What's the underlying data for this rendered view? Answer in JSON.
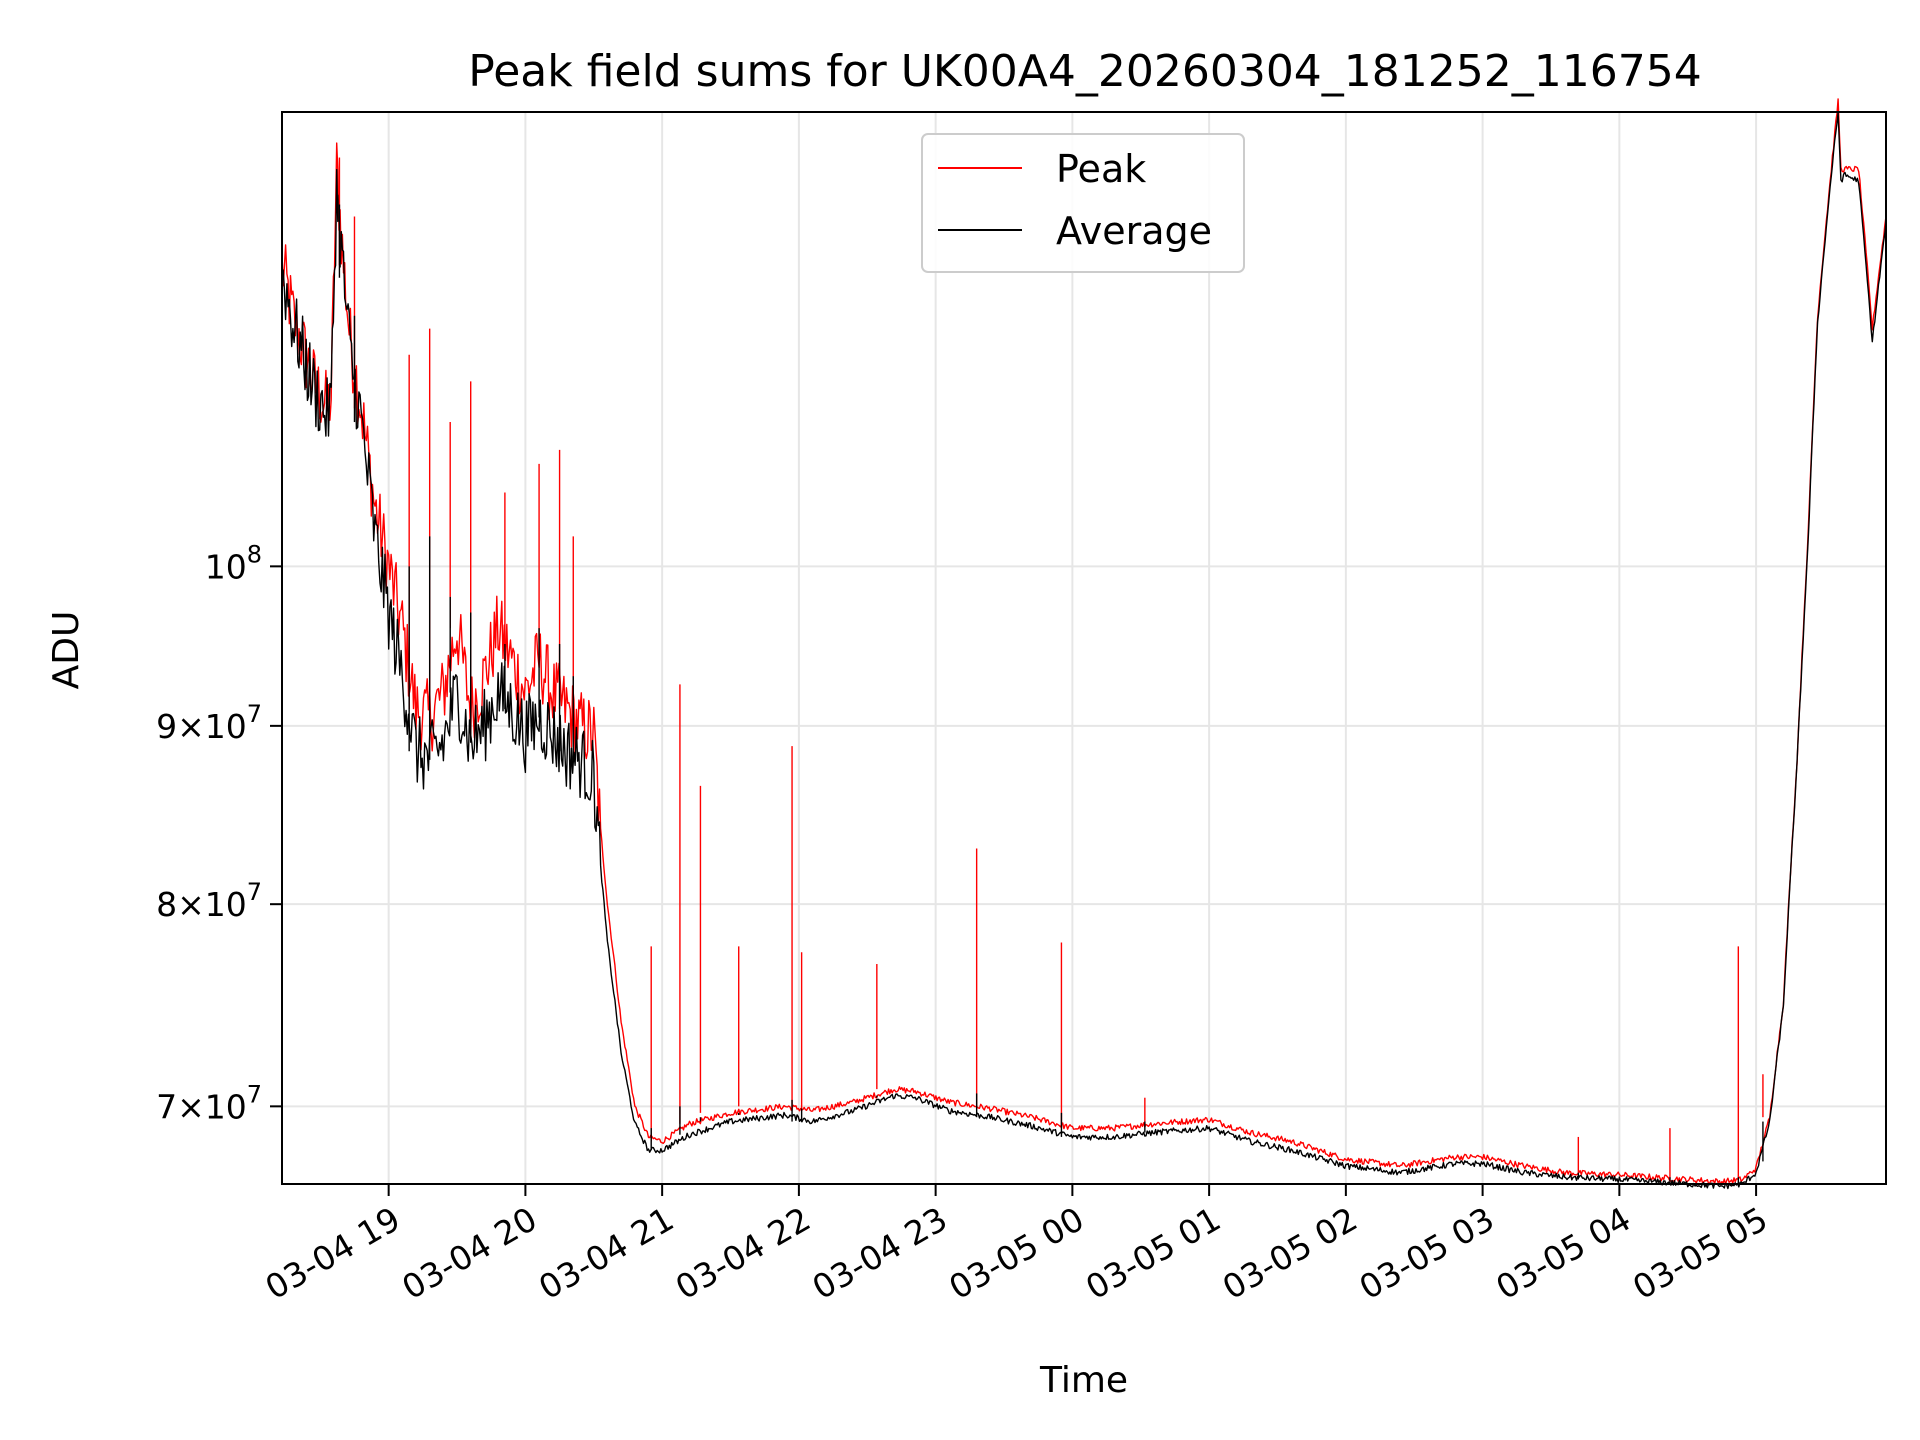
{
  "chart_data": {
    "type": "line",
    "title": "Peak field sums for UK00A4_20260304_181252_116754",
    "xlabel": "Time",
    "ylabel": "ADU",
    "x_unit": "hours from 2026-03-04 00:00 (ticks labelled MM-DD HH)",
    "xlim": [
      18.22,
      29.95
    ],
    "ylim": [
      66500000,
      135000000
    ],
    "y_scale": "log",
    "grid": true,
    "legend_position": "upper-center",
    "x_ticks": [
      {
        "value": 19,
        "label": "03-04 19"
      },
      {
        "value": 20,
        "label": "03-04 20"
      },
      {
        "value": 21,
        "label": "03-04 21"
      },
      {
        "value": 22,
        "label": "03-04 22"
      },
      {
        "value": 23,
        "label": "03-04 23"
      },
      {
        "value": 24,
        "label": "03-05 00"
      },
      {
        "value": 25,
        "label": "03-05 01"
      },
      {
        "value": 26,
        "label": "03-05 02"
      },
      {
        "value": 27,
        "label": "03-05 03"
      },
      {
        "value": 28,
        "label": "03-05 04"
      },
      {
        "value": 29,
        "label": "03-05 05"
      }
    ],
    "y_ticks": [
      {
        "value": 70000000,
        "mantissa": "7",
        "base": "10",
        "exponent": "7"
      },
      {
        "value": 80000000,
        "mantissa": "8",
        "base": "10",
        "exponent": "7"
      },
      {
        "value": 90000000,
        "mantissa": "9",
        "base": "10",
        "exponent": "7"
      },
      {
        "value": 100000000,
        "mantissa": "",
        "base": "10",
        "exponent": "8"
      }
    ],
    "series": [
      {
        "name": "Peak",
        "color": "#ff0000",
        "x": [
          18.22,
          18.3,
          18.45,
          18.55,
          18.58,
          18.62,
          18.67,
          18.72,
          18.8,
          18.9,
          19.0,
          19.1,
          19.2,
          19.3,
          19.4,
          19.5,
          19.6,
          19.7,
          19.8,
          19.9,
          20.0,
          20.1,
          20.2,
          20.3,
          20.4,
          20.5,
          20.55,
          20.6,
          20.7,
          20.8,
          20.9,
          21.0,
          21.2,
          21.5,
          21.9,
          22.1,
          22.4,
          22.7,
          22.85,
          23.1,
          23.4,
          23.7,
          24.0,
          24.3,
          24.6,
          25.0,
          25.3,
          25.6,
          26.0,
          26.4,
          26.8,
          27.0,
          27.3,
          27.6,
          28.0,
          28.5,
          28.75,
          28.9,
          29.0,
          29.1,
          29.2,
          29.3,
          29.38,
          29.45,
          29.55,
          29.6,
          29.62,
          29.65,
          29.75,
          29.85,
          29.95
        ],
        "values": [
          122000000,
          118000000,
          113000000,
          111000000,
          112000000,
          130000000,
          122000000,
          116000000,
          111000000,
          104000000,
          100000000,
          96000000,
          91000000,
          90500000,
          92000000,
          96000000,
          91000000,
          93000000,
          96000000,
          94000000,
          92000000,
          94000000,
          92000000,
          91000000,
          90000000,
          89500000,
          84000000,
          80000000,
          74000000,
          70000000,
          68600000,
          68400000,
          69200000,
          69700000,
          70000000,
          69800000,
          70200000,
          70800000,
          70700000,
          70200000,
          69900000,
          69500000,
          69000000,
          69000000,
          69200000,
          69400000,
          68800000,
          68400000,
          67600000,
          67300000,
          67700000,
          67700000,
          67300000,
          67000000,
          66900000,
          66700000,
          66600000,
          66700000,
          67200000,
          69500000,
          75000000,
          88000000,
          102000000,
          118000000,
          130000000,
          136000000,
          130000000,
          130000000,
          130000000,
          117000000,
          126000000
        ]
      },
      {
        "name": "Average",
        "color": "#000000",
        "x": [
          18.22,
          18.3,
          18.45,
          18.55,
          18.58,
          18.62,
          18.67,
          18.72,
          18.8,
          18.9,
          19.0,
          19.1,
          19.2,
          19.3,
          19.4,
          19.5,
          19.6,
          19.7,
          19.8,
          19.9,
          20.0,
          20.1,
          20.2,
          20.3,
          20.4,
          20.5,
          20.55,
          20.6,
          20.7,
          20.8,
          20.9,
          21.0,
          21.2,
          21.5,
          21.9,
          22.1,
          22.4,
          22.7,
          22.85,
          23.1,
          23.4,
          23.7,
          24.0,
          24.3,
          24.6,
          25.0,
          25.3,
          25.6,
          26.0,
          26.4,
          26.8,
          27.0,
          27.3,
          27.6,
          28.0,
          28.5,
          28.75,
          28.9,
          29.0,
          29.1,
          29.2,
          29.3,
          29.38,
          29.45,
          29.55,
          29.6,
          29.62,
          29.65,
          29.75,
          29.85,
          29.95
        ],
        "values": [
          121500000,
          117500000,
          112500000,
          110500000,
          111500000,
          128500000,
          121000000,
          115000000,
          110000000,
          102000000,
          97000000,
          93000000,
          88500000,
          88000000,
          89000000,
          92000000,
          89000000,
          90000000,
          92000000,
          91000000,
          89500000,
          90500000,
          89500000,
          88500000,
          88000000,
          87000000,
          82000000,
          78000000,
          72500000,
          69200000,
          68000000,
          68000000,
          68700000,
          69300000,
          69600000,
          69300000,
          69800000,
          70500000,
          70400000,
          69800000,
          69500000,
          69100000,
          68600000,
          68600000,
          68800000,
          69000000,
          68400000,
          68000000,
          67300000,
          67000000,
          67400000,
          67400000,
          67000000,
          66800000,
          66700000,
          66500000,
          66400000,
          66500000,
          67000000,
          69300000,
          74800000,
          87800000,
          101500000,
          117500000,
          129500000,
          135000000,
          129000000,
          129500000,
          129000000,
          116000000,
          125500000
        ]
      }
    ],
    "spikes": [
      {
        "x": 18.64,
        "values": [
          131000000,
          127000000
        ]
      },
      {
        "x": 18.75,
        "values": [
          126000000,
          118000000
        ]
      },
      {
        "x": 19.15,
        "values": [
          115000000,
          100000000
        ]
      },
      {
        "x": 19.3,
        "values": [
          117000000,
          102000000
        ]
      },
      {
        "x": 19.45,
        "values": [
          110000000,
          98000000
        ]
      },
      {
        "x": 19.6,
        "values": [
          113000000,
          97000000
        ]
      },
      {
        "x": 19.85,
        "values": [
          105000000,
          95000000
        ]
      },
      {
        "x": 20.1,
        "values": [
          107000000,
          96000000
        ]
      },
      {
        "x": 20.25,
        "values": [
          108000000,
          95000000
        ]
      },
      {
        "x": 20.35,
        "values": [
          102000000,
          93000000
        ]
      },
      {
        "x": 21.13,
        "values": [
          92500000,
          70000000
        ]
      },
      {
        "x": 21.28,
        "values": [
          86500000,
          69500000
        ]
      },
      {
        "x": 20.92,
        "values": [
          77800000,
          69000000
        ]
      },
      {
        "x": 21.56,
        "values": [
          77800000,
          69700000
        ]
      },
      {
        "x": 21.95,
        "values": [
          88800000,
          70300000
        ]
      },
      {
        "x": 22.02,
        "values": [
          77500000,
          69900000
        ]
      },
      {
        "x": 22.57,
        "values": [
          76900000,
          70400000
        ]
      },
      {
        "x": 23.3,
        "values": [
          83000000,
          70600000
        ]
      },
      {
        "x": 23.92,
        "values": [
          78000000,
          69700000
        ]
      },
      {
        "x": 24.53,
        "values": [
          70400000,
          69300000
        ]
      },
      {
        "x": 27.7,
        "values": [
          68600000,
          67000000
        ]
      },
      {
        "x": 28.37,
        "values": [
          69000000,
          66800000
        ]
      },
      {
        "x": 28.87,
        "values": [
          77800000,
          66800000
        ]
      },
      {
        "x": 29.05,
        "values": [
          71500000,
          67500000
        ]
      }
    ]
  }
}
